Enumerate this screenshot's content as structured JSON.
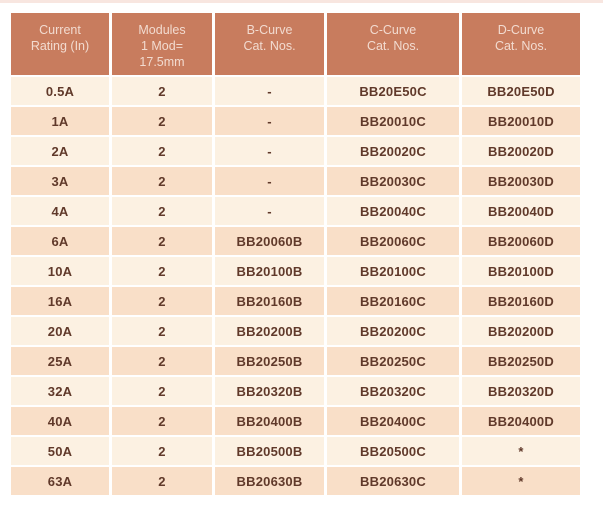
{
  "page": {
    "background": "#ffffff",
    "top_strip_color": "#f8e6e0"
  },
  "table": {
    "colors": {
      "header_bg": "#c87c5e",
      "header_text": "#f2dbd0",
      "row_light": "#fcf1e2",
      "row_dark": "#f9dfc8",
      "body_text": "#60392a",
      "separator": "#ffffff"
    },
    "columns": [
      {
        "id": "current-rating",
        "label": "Current\nRating (In)"
      },
      {
        "id": "modules",
        "label": "Modules\n1 Mod=\n17.5mm"
      },
      {
        "id": "b-curve",
        "label": "B-Curve\nCat. Nos."
      },
      {
        "id": "c-curve",
        "label": "C-Curve\nCat. Nos."
      },
      {
        "id": "d-curve",
        "label": "D-Curve\nCat. Nos."
      }
    ],
    "rows": [
      [
        "0.5A",
        "2",
        "-",
        "BB20E50C",
        "BB20E50D"
      ],
      [
        "1A",
        "2",
        "-",
        "BB20010C",
        "BB20010D"
      ],
      [
        "2A",
        "2",
        "-",
        "BB20020C",
        "BB20020D"
      ],
      [
        "3A",
        "2",
        "-",
        "BB20030C",
        "BB20030D"
      ],
      [
        "4A",
        "2",
        "-",
        "BB20040C",
        "BB20040D"
      ],
      [
        "6A",
        "2",
        "BB20060B",
        "BB20060C",
        "BB20060D"
      ],
      [
        "10A",
        "2",
        "BB20100B",
        "BB20100C",
        "BB20100D"
      ],
      [
        "16A",
        "2",
        "BB20160B",
        "BB20160C",
        "BB20160D"
      ],
      [
        "20A",
        "2",
        "BB20200B",
        "BB20200C",
        "BB20200D"
      ],
      [
        "25A",
        "2",
        "BB20250B",
        "BB20250C",
        "BB20250D"
      ],
      [
        "32A",
        "2",
        "BB20320B",
        "BB20320C",
        "BB20320D"
      ],
      [
        "40A",
        "2",
        "BB20400B",
        "BB20400C",
        "BB20400D"
      ],
      [
        "50A",
        "2",
        "BB20500B",
        "BB20500C",
        "*"
      ],
      [
        "63A",
        "2",
        "BB20630B",
        "BB20630C",
        "*"
      ]
    ]
  }
}
